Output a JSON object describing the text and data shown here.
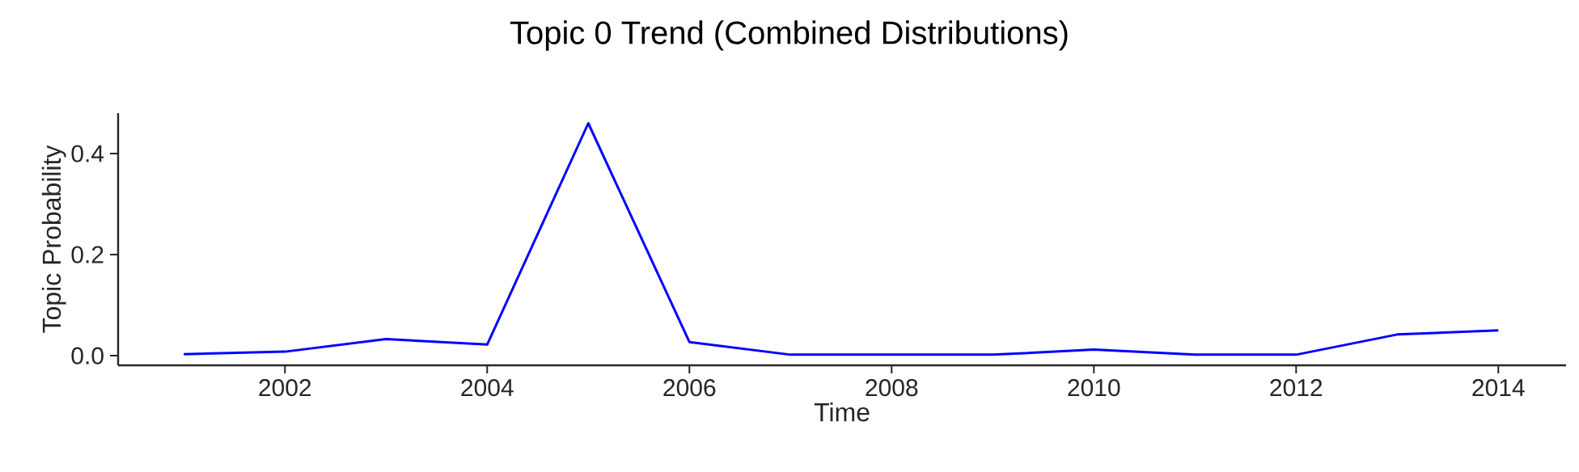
{
  "chart_data": {
    "type": "line",
    "title": "Topic 0 Trend (Combined Distributions)",
    "xlabel": "Time",
    "ylabel": "Topic Probability",
    "x": [
      2001,
      2002,
      2003,
      2004,
      2005,
      2006,
      2007,
      2008,
      2009,
      2010,
      2011,
      2012,
      2013,
      2014
    ],
    "series": [
      {
        "color": "#0000ff",
        "values": [
          0.003,
          0.008,
          0.033,
          0.022,
          0.46,
          0.027,
          0.002,
          0.002,
          0.002,
          0.012,
          0.002,
          0.002,
          0.042,
          0.05
        ]
      }
    ],
    "xlim": [
      2000.35,
      2014.67
    ],
    "ylim": [
      -0.019,
      0.48
    ],
    "xticks": [
      2002,
      2004,
      2006,
      2008,
      2010,
      2012,
      2014
    ],
    "yticks": [
      {
        "value": 0,
        "label": "0.0"
      },
      {
        "value": 0.2,
        "label": "0.2"
      },
      {
        "value": 0.4,
        "label": "0.4"
      }
    ],
    "grid": false
  }
}
